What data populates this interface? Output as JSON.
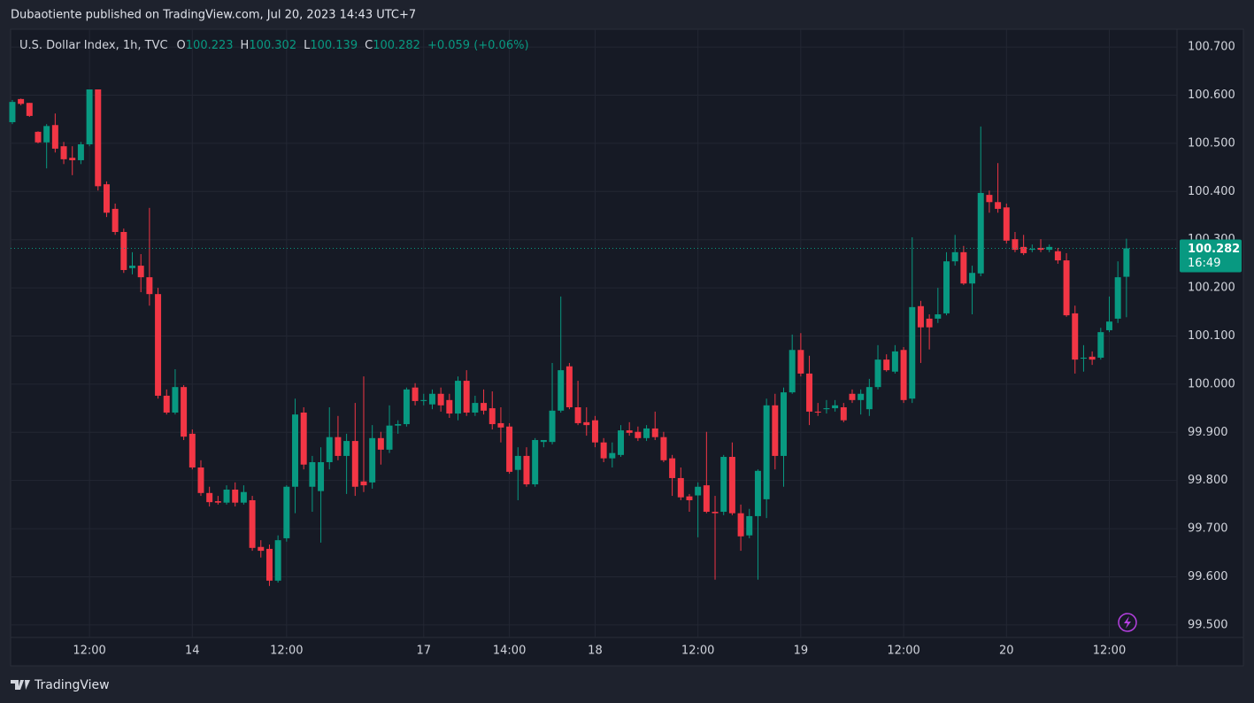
{
  "chart_data": {
    "type": "candlestick",
    "publisher": "Dubaotiente published on TradingView.com, Jul 20, 2023 14:43 UTC+7",
    "title": "U.S. Dollar Index, 1h, TVC",
    "ohlc_letters": [
      "O",
      "H",
      "L",
      "C"
    ],
    "change": "+0.059 (+0.06%)",
    "countdown": "16:49",
    "brand": "TradingView",
    "up_color": "#089981",
    "down_color": "#f23645",
    "grid": true,
    "open": [
      100.544,
      100.592,
      100.584,
      100.524,
      100.502,
      100.538,
      100.494,
      100.47,
      100.465,
      100.498,
      100.612,
      100.415,
      100.364,
      100.316,
      100.241,
      100.246,
      100.222,
      100.187,
      99.976,
      99.941,
      99.994,
      99.897,
      99.827,
      99.774,
      99.757,
      99.754,
      99.781,
      99.754,
      99.759,
      99.662,
      99.658,
      99.592,
      99.68,
      99.787,
      99.941,
      99.787,
      99.778,
      99.838,
      99.89,
      99.851,
      99.882,
      99.798,
      99.796,
      99.888,
      99.864,
      99.914,
      99.917,
      99.993,
      99.965,
      99.958,
      99.98,
      99.967,
      99.939,
      100.007,
      99.941,
      99.961,
      99.95,
      99.919,
      99.912,
      99.822,
      99.851,
      99.792,
      99.88,
      99.88,
      99.945,
      100.037,
      99.952,
      99.921,
      99.925,
      99.879,
      99.846,
      99.853,
      99.904,
      99.901,
      99.888,
      99.908,
      99.89,
      99.846,
      99.805,
      99.767,
      99.769,
      99.79,
      99.735,
      99.735,
      99.849,
      99.732,
      99.686,
      99.726,
      99.761,
      99.956,
      99.851,
      99.983,
      100.071,
      100.022,
      99.943,
      99.948,
      99.95,
      99.952,
      99.98,
      99.967,
      99.948,
      99.994,
      100.051,
      100.026,
      100.071,
      99.97,
      100.162,
      100.136,
      100.136,
      100.147,
      100.255,
      100.274,
      100.209,
      100.23,
      100.393,
      100.378,
      100.367,
      100.301,
      100.285,
      100.279,
      100.283,
      100.279,
      100.276,
      100.257,
      100.147,
      100.053,
      100.057,
      100.055,
      100.112,
      100.136,
      100.223
    ],
    "high": [
      100.59,
      100.593,
      100.584,
      100.525,
      100.54,
      100.562,
      100.503,
      100.494,
      100.503,
      100.612,
      100.612,
      100.421,
      100.375,
      100.323,
      100.274,
      100.27,
      100.366,
      100.2,
      99.989,
      100.031,
      99.998,
      99.906,
      99.842,
      99.787,
      99.768,
      99.79,
      99.796,
      99.79,
      99.768,
      99.676,
      99.667,
      99.686,
      99.79,
      99.97,
      99.952,
      99.851,
      99.869,
      99.952,
      99.934,
      99.897,
      99.961,
      100.016,
      99.915,
      99.901,
      99.956,
      99.925,
      99.993,
      100.002,
      99.98,
      99.989,
      99.993,
      99.98,
      100.016,
      100.029,
      99.976,
      99.989,
      99.985,
      99.952,
      99.919,
      99.869,
      99.869,
      99.888,
      99.884,
      100.044,
      100.182,
      100.044,
      100.007,
      99.952,
      99.934,
      99.888,
      99.879,
      99.915,
      99.921,
      99.912,
      99.915,
      99.943,
      99.901,
      99.853,
      99.827,
      99.772,
      99.796,
      99.901,
      99.768,
      99.853,
      99.879,
      99.75,
      99.741,
      99.823,
      99.97,
      99.98,
      99.993,
      100.103,
      100.106,
      100.059,
      99.961,
      99.967,
      99.967,
      99.961,
      99.989,
      99.989,
      100.011,
      100.081,
      100.062,
      100.081,
      100.077,
      100.305,
      100.173,
      100.145,
      100.2,
      100.274,
      100.31,
      100.287,
      100.246,
      100.535,
      100.402,
      100.459,
      100.375,
      100.316,
      100.31,
      100.29,
      100.301,
      100.29,
      100.283,
      100.272,
      100.163,
      100.081,
      100.068,
      100.117,
      100.182,
      100.255,
      100.302
    ],
    "low": [
      100.54,
      100.579,
      100.555,
      100.5,
      100.448,
      100.481,
      100.457,
      100.434,
      100.457,
      100.494,
      100.402,
      100.347,
      100.31,
      100.231,
      100.228,
      100.191,
      100.163,
      99.97,
      99.937,
      99.937,
      99.884,
      99.823,
      99.768,
      99.746,
      99.75,
      99.75,
      99.746,
      99.75,
      99.654,
      99.64,
      99.581,
      99.588,
      99.673,
      99.732,
      99.823,
      99.735,
      99.671,
      99.823,
      99.842,
      99.772,
      99.768,
      99.776,
      99.783,
      99.833,
      99.857,
      99.897,
      99.912,
      99.956,
      99.956,
      99.948,
      99.943,
      99.93,
      99.925,
      99.934,
      99.934,
      99.937,
      99.906,
      99.879,
      99.814,
      99.759,
      99.787,
      99.787,
      99.869,
      99.875,
      99.941,
      99.948,
      99.915,
      99.893,
      99.869,
      99.838,
      99.827,
      99.849,
      99.893,
      99.882,
      99.882,
      99.884,
      99.838,
      99.768,
      99.759,
      99.735,
      99.682,
      99.732,
      99.594,
      99.728,
      99.728,
      99.654,
      99.68,
      99.594,
      99.722,
      99.823,
      99.787,
      99.98,
      100.016,
      99.915,
      99.934,
      99.939,
      99.943,
      99.921,
      99.961,
      99.937,
      99.934,
      99.989,
      100.026,
      100.022,
      99.961,
      99.961,
      100.044,
      100.072,
      100.127,
      100.143,
      100.246,
      100.206,
      100.145,
      100.224,
      100.356,
      100.356,
      100.292,
      100.274,
      100.268,
      100.274,
      100.274,
      100.274,
      100.25,
      100.14,
      100.022,
      100.026,
      100.04,
      100.051,
      100.108,
      100.127,
      100.139
    ],
    "close": [
      100.586,
      100.582,
      100.557,
      100.502,
      100.536,
      100.489,
      100.467,
      100.465,
      100.498,
      100.612,
      100.411,
      100.356,
      100.316,
      100.237,
      100.246,
      100.222,
      100.187,
      99.976,
      99.941,
      99.994,
      99.891,
      99.827,
      99.774,
      99.755,
      99.754,
      99.781,
      99.754,
      99.776,
      99.66,
      99.654,
      99.592,
      99.676,
      99.787,
      99.937,
      99.833,
      99.838,
      99.838,
      99.89,
      99.851,
      99.882,
      99.787,
      99.79,
      99.888,
      99.864,
      99.914,
      99.917,
      99.989,
      99.965,
      99.967,
      99.98,
      99.956,
      99.939,
      100.007,
      99.941,
      99.961,
      99.945,
      99.917,
      99.91,
      99.818,
      99.851,
      99.792,
      99.884,
      99.884,
      99.945,
      100.029,
      99.952,
      99.919,
      99.915,
      99.879,
      99.846,
      99.857,
      99.904,
      99.899,
      99.888,
      99.908,
      99.89,
      99.842,
      99.805,
      99.765,
      99.759,
      99.787,
      99.735,
      99.732,
      99.849,
      99.732,
      99.684,
      99.726,
      99.82,
      99.956,
      99.851,
      99.983,
      100.071,
      100.022,
      99.943,
      99.941,
      99.95,
      99.956,
      99.925,
      99.967,
      99.98,
      99.994,
      100.051,
      100.029,
      100.068,
      99.967,
      100.16,
      100.118,
      100.118,
      100.145,
      100.255,
      100.274,
      100.209,
      100.231,
      100.397,
      100.378,
      100.364,
      100.298,
      100.279,
      100.272,
      100.281,
      100.279,
      100.285,
      100.257,
      100.143,
      100.051,
      100.055,
      100.051,
      100.108,
      100.13,
      100.222,
      100.282
    ],
    "xlim": [
      -0.2,
      135.9
    ],
    "xticks": [
      {
        "value": 9,
        "label": "12:00"
      },
      {
        "value": 21,
        "label": "14"
      },
      {
        "value": 32,
        "label": "12:00"
      },
      {
        "value": 48,
        "label": "17"
      },
      {
        "value": 58,
        "label": "14:00"
      },
      {
        "value": 68,
        "label": "18"
      },
      {
        "value": 80,
        "label": "12:00"
      },
      {
        "value": 92,
        "label": "19"
      },
      {
        "value": 104,
        "label": "12:00"
      },
      {
        "value": 116,
        "label": "20"
      },
      {
        "value": 128,
        "label": "12:00"
      }
    ],
    "ylim": [
      99.474,
      100.737
    ],
    "yticks": [
      {
        "value": 99.5,
        "label": "99.500"
      },
      {
        "value": 99.6,
        "label": "99.600"
      },
      {
        "value": 99.7,
        "label": "99.700"
      },
      {
        "value": 99.8,
        "label": "99.800"
      },
      {
        "value": 99.9,
        "label": "99.900"
      },
      {
        "value": 100,
        "label": "100.000"
      },
      {
        "value": 100.1,
        "label": "100.100"
      },
      {
        "value": 100.2,
        "label": "100.200"
      },
      {
        "value": 100.3,
        "label": "100.300"
      },
      {
        "value": 100.4,
        "label": "100.400"
      },
      {
        "value": 100.5,
        "label": "100.500"
      },
      {
        "value": 100.6,
        "label": "100.600"
      },
      {
        "value": 100.7,
        "label": "100.700"
      }
    ]
  }
}
